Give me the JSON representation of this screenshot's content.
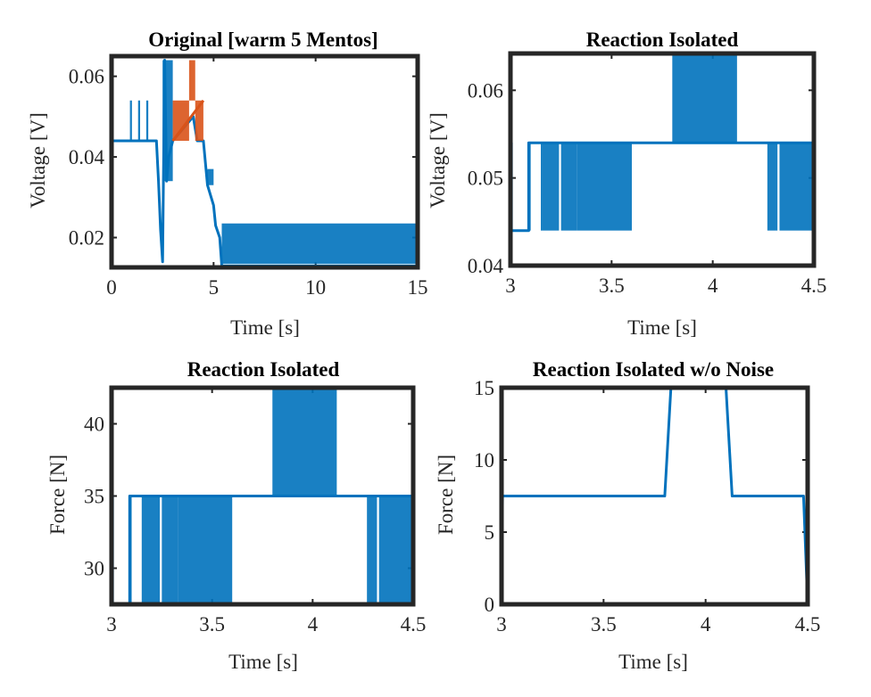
{
  "colors": {
    "series_blue": "#0072BD",
    "series_orange": "#D95319",
    "axes": "#262626"
  },
  "chart_data": [
    {
      "type": "line",
      "title": "Original [warm 5 Mentos]",
      "xlabel": "Time [s]",
      "ylabel": "Voltage [V]",
      "xlim": [
        0,
        15
      ],
      "ylim": [
        0.0126,
        0.065
      ],
      "xticks": [
        0,
        5,
        10,
        15
      ],
      "xtick_labels": [
        "0",
        "5",
        "10",
        "15"
      ],
      "yticks": [
        0.02,
        0.04,
        0.06
      ],
      "ytick_labels": [
        "0.02",
        "0.04",
        "0.06"
      ],
      "grid": false,
      "series": [
        {
          "color": "#0072BD",
          "x": [
            0,
            2.2,
            2.3,
            2.4,
            2.5,
            2.6,
            2.7,
            2.8,
            3.0,
            4.0,
            4.2,
            4.5,
            4.7,
            5.0,
            5.1,
            5.3,
            5.4,
            15
          ],
          "y": [
            0.044,
            0.044,
            0.034,
            0.022,
            0.014,
            0.064,
            0.034,
            0.04,
            0.044,
            0.05,
            0.044,
            0.044,
            0.033,
            0.028,
            0.023,
            0.02,
            0.013,
            0.013
          ],
          "noise_bands": [
            {
              "x": [
                0.9,
                1.0
              ],
              "y": [
                0.044,
                0.054
              ]
            },
            {
              "x": [
                1.3,
                1.4
              ],
              "y": [
                0.044,
                0.054
              ]
            },
            {
              "x": [
                1.7,
                1.8
              ],
              "y": [
                0.044,
                0.054
              ]
            },
            {
              "x": [
                2.5,
                3.0
              ],
              "y": [
                0.034,
                0.064
              ]
            },
            {
              "x": [
                4.7,
                5.0
              ],
              "y": [
                0.033,
                0.037
              ]
            },
            {
              "x": [
                5.4,
                15.0
              ],
              "y": [
                0.0135,
                0.0235
              ]
            }
          ]
        },
        {
          "color": "#D95319",
          "x": [
            3.0,
            4.5
          ],
          "y": [
            0.044,
            0.054
          ],
          "noise_bands": [
            {
              "x": [
                3.0,
                3.8
              ],
              "y": [
                0.044,
                0.054
              ]
            },
            {
              "x": [
                3.8,
                4.1
              ],
              "y": [
                0.054,
                0.064
              ]
            },
            {
              "x": [
                4.1,
                4.5
              ],
              "y": [
                0.044,
                0.054
              ]
            }
          ]
        }
      ]
    },
    {
      "type": "line",
      "title": "Reaction Isolated",
      "xlabel": "Time [s]",
      "ylabel": "Voltage [V]",
      "xlim": [
        3,
        4.5
      ],
      "ylim": [
        0.04,
        0.0642
      ],
      "xticks": [
        3,
        3.5,
        4,
        4.5
      ],
      "xtick_labels": [
        "3",
        "3.5",
        "4",
        "4.5"
      ],
      "yticks": [
        0.04,
        0.05,
        0.06
      ],
      "ytick_labels": [
        "0.04",
        "0.05",
        "0.06"
      ],
      "grid": false,
      "series": [
        {
          "color": "#0072BD",
          "x": [
            3.0,
            3.005,
            3.005,
            3.02,
            3.02,
            3.09,
            3.09,
            3.15,
            3.8,
            4.12,
            4.5
          ],
          "y": [
            0.054,
            0.054,
            0.044,
            0.044,
            0.044,
            0.044,
            0.054,
            0.054,
            0.054,
            0.054,
            0.054
          ],
          "noise_bands": [
            {
              "x": [
                3.0,
                3.006
              ],
              "y": [
                0.044,
                0.054
              ]
            },
            {
              "x": [
                3.09,
                3.1
              ],
              "y": [
                0.044,
                0.054
              ]
            },
            {
              "x": [
                3.15,
                3.24
              ],
              "y": [
                0.044,
                0.054
              ]
            },
            {
              "x": [
                3.25,
                3.33
              ],
              "y": [
                0.044,
                0.054
              ]
            },
            {
              "x": [
                3.33,
                3.6
              ],
              "y": [
                0.044,
                0.054
              ]
            },
            {
              "x": [
                3.8,
                4.12
              ],
              "y": [
                0.054,
                0.064
              ]
            },
            {
              "x": [
                4.27,
                4.32
              ],
              "y": [
                0.044,
                0.054
              ]
            },
            {
              "x": [
                4.33,
                4.5
              ],
              "y": [
                0.044,
                0.054
              ]
            }
          ]
        }
      ]
    },
    {
      "type": "line",
      "title": "Reaction Isolated",
      "xlabel": "Time [s]",
      "ylabel": "Force [N]",
      "xlim": [
        3,
        4.5
      ],
      "ylim": [
        27.5,
        42.5
      ],
      "xticks": [
        3,
        3.5,
        4,
        4.5
      ],
      "xtick_labels": [
        "3",
        "3.5",
        "4",
        "4.5"
      ],
      "yticks": [
        30,
        35,
        40
      ],
      "ytick_labels": [
        "30",
        "35",
        "40"
      ],
      "grid": false,
      "series": [
        {
          "color": "#0072BD",
          "x": [
            3.0,
            3.005,
            3.005,
            3.09,
            3.09,
            3.15,
            3.8,
            4.12,
            4.5
          ],
          "y": [
            35,
            35,
            27.5,
            27.5,
            35,
            35,
            35,
            35,
            35
          ],
          "noise_bands": [
            {
              "x": [
                3.0,
                3.006
              ],
              "y": [
                27.5,
                35
              ]
            },
            {
              "x": [
                3.09,
                3.1
              ],
              "y": [
                27.5,
                35
              ]
            },
            {
              "x": [
                3.15,
                3.24
              ],
              "y": [
                27.5,
                35
              ]
            },
            {
              "x": [
                3.25,
                3.33
              ],
              "y": [
                27.5,
                35
              ]
            },
            {
              "x": [
                3.33,
                3.6
              ],
              "y": [
                27.5,
                35
              ]
            },
            {
              "x": [
                3.8,
                4.12
              ],
              "y": [
                35,
                42.5
              ]
            },
            {
              "x": [
                4.27,
                4.32
              ],
              "y": [
                27.5,
                35
              ]
            },
            {
              "x": [
                4.33,
                4.5
              ],
              "y": [
                27.5,
                35
              ]
            }
          ]
        }
      ]
    },
    {
      "type": "line",
      "title": "Reaction Isolated w/o Noise",
      "xlabel": "Time [s]",
      "ylabel": "Force [N]",
      "xlim": [
        3,
        4.5
      ],
      "ylim": [
        0,
        15
      ],
      "xticks": [
        3,
        3.5,
        4,
        4.5
      ],
      "xtick_labels": [
        "3",
        "3.5",
        "4",
        "4.5"
      ],
      "yticks": [
        0,
        5,
        10,
        15
      ],
      "ytick_labels": [
        "0",
        "5",
        "10",
        "15"
      ],
      "grid": false,
      "series": [
        {
          "color": "#0072BD",
          "x": [
            3.0,
            3.005,
            3.8,
            3.83,
            4.1,
            4.13,
            4.48,
            4.5
          ],
          "y": [
            0,
            7.5,
            7.5,
            15,
            15,
            7.5,
            7.5,
            0
          ],
          "noise_bands": []
        }
      ]
    }
  ]
}
